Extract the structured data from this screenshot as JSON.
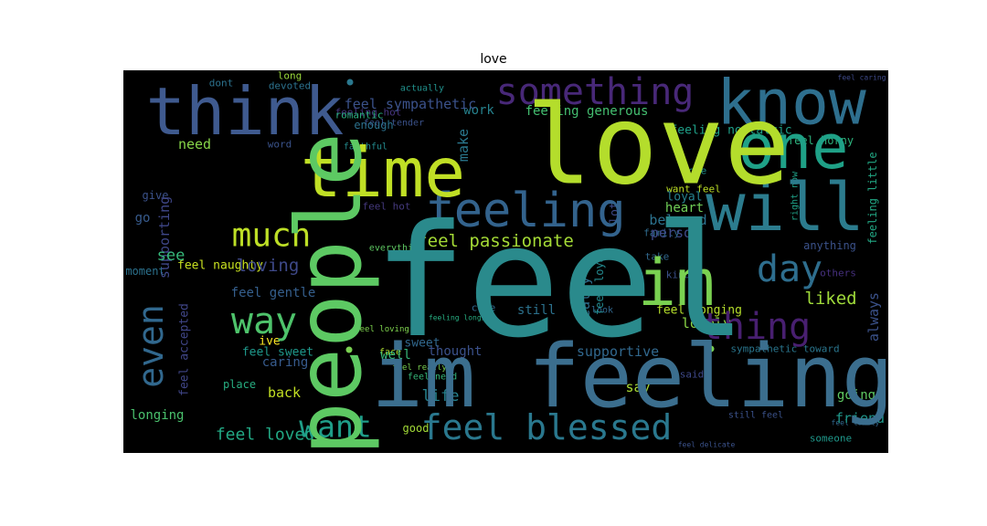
{
  "title": "love",
  "chart_data": {
    "type": "wordcloud",
    "title": "love",
    "background": "#000000",
    "colormap": "viridis",
    "words": [
      {
        "text": "feel",
        "color": "#2a8a8c",
        "weight": 1.0
      },
      {
        "text": "love",
        "color": "#b4dd2c",
        "weight": 0.95
      },
      {
        "text": "im feeling",
        "color": "#3b6e8e",
        "weight": 0.9
      },
      {
        "text": "people",
        "color": "#5dc963",
        "weight": 0.78
      },
      {
        "text": "time",
        "color": "#c0df25",
        "weight": 0.76
      },
      {
        "text": "think",
        "color": "#3f5a8f",
        "weight": 0.75
      },
      {
        "text": "know",
        "color": "#2e6f8e",
        "weight": 0.72
      },
      {
        "text": "will",
        "color": "#2c7c8e",
        "weight": 0.7
      },
      {
        "text": "one",
        "color": "#1fa187",
        "weight": 0.68
      },
      {
        "text": "im",
        "color": "#7ad151",
        "weight": 0.66
      },
      {
        "text": "feeling",
        "color": "#33638d",
        "weight": 0.55
      },
      {
        "text": "something",
        "color": "#482878",
        "weight": 0.52
      },
      {
        "text": "thing",
        "color": "#481f70",
        "weight": 0.5
      },
      {
        "text": "feel blessed",
        "color": "#2a788e",
        "weight": 0.48
      },
      {
        "text": "much",
        "color": "#bddf26",
        "weight": 0.47
      },
      {
        "text": "way",
        "color": "#4ec36b",
        "weight": 0.46
      },
      {
        "text": "even",
        "color": "#31688e",
        "weight": 0.45
      },
      {
        "text": "day",
        "color": "#2e6e8e",
        "weight": 0.44
      },
      {
        "text": "want",
        "color": "#1f9e89",
        "weight": 0.4
      },
      {
        "text": "feel passionate",
        "color": "#a5db36",
        "weight": 0.3
      },
      {
        "text": "loving",
        "color": "#3e4989",
        "weight": 0.25
      },
      {
        "text": "liked",
        "color": "#9fda3a",
        "weight": 0.25
      },
      {
        "text": "feel loved",
        "color": "#22a884",
        "weight": 0.25
      },
      {
        "text": "see",
        "color": "#35b779",
        "weight": 0.24
      },
      {
        "text": "life",
        "color": "#26828e",
        "weight": 0.23
      },
      {
        "text": "supportive",
        "color": "#31688e",
        "weight": 0.22
      },
      {
        "text": "feel sympathetic",
        "color": "#3b528b",
        "weight": 0.22
      },
      {
        "text": "feeling generous",
        "color": "#44bf70",
        "weight": 0.21
      },
      {
        "text": "beloved",
        "color": "#2c728e",
        "weight": 0.21
      },
      {
        "text": "feel gentle",
        "color": "#355f8d",
        "weight": 0.2
      },
      {
        "text": "always",
        "color": "#3b528b",
        "weight": 0.2
      },
      {
        "text": "feel accepted",
        "color": "#404688",
        "weight": 0.2
      },
      {
        "text": "supporting",
        "color": "#3f4788",
        "weight": 0.2
      },
      {
        "text": "longing",
        "color": "#4ac16d",
        "weight": 0.2
      },
      {
        "text": "lovely",
        "color": "#8bd646",
        "weight": 0.19
      },
      {
        "text": "need",
        "color": "#86d549",
        "weight": 0.19
      },
      {
        "text": "work",
        "color": "#26828e",
        "weight": 0.19
      },
      {
        "text": "make",
        "color": "#2a788e",
        "weight": 0.19
      },
      {
        "text": "feel naughty",
        "color": "#c8e020",
        "weight": 0.18
      },
      {
        "text": "heart",
        "color": "#70cf57",
        "weight": 0.18
      },
      {
        "text": "person",
        "color": "#3e4a89",
        "weight": 0.18
      },
      {
        "text": "friend",
        "color": "#1f988b",
        "weight": 0.18
      },
      {
        "text": "going",
        "color": "#5ec962",
        "weight": 0.17
      },
      {
        "text": "caring",
        "color": "#375b8d",
        "weight": 0.17
      },
      {
        "text": "say",
        "color": "#a8db34",
        "weight": 0.17
      },
      {
        "text": "thought",
        "color": "#3b518b",
        "weight": 0.17
      },
      {
        "text": "back",
        "color": "#c2df23",
        "weight": 0.17
      },
      {
        "text": "feeling nostalgic",
        "color": "#1fa088",
        "weight": 0.16
      },
      {
        "text": "feel horny",
        "color": "#2db27d",
        "weight": 0.16
      },
      {
        "text": "well",
        "color": "#35b779",
        "weight": 0.16
      },
      {
        "text": "still",
        "color": "#2c728e",
        "weight": 0.16
      },
      {
        "text": "really",
        "color": "#2e6f8e",
        "weight": 0.16
      },
      {
        "text": "sweet",
        "color": "#31688e",
        "weight": 0.15
      },
      {
        "text": "feel longing",
        "color": "#b5de2b",
        "weight": 0.15
      },
      {
        "text": "feeling little",
        "color": "#22a884",
        "weight": 0.15
      },
      {
        "text": "go",
        "color": "#375b8d",
        "weight": 0.15
      },
      {
        "text": "moment",
        "color": "#2c728e",
        "weight": 0.14
      },
      {
        "text": "give",
        "color": "#3b528b",
        "weight": 0.14
      },
      {
        "text": "feel sweet",
        "color": "#1f988b",
        "weight": 0.14
      },
      {
        "text": "lot",
        "color": "#3e4a89",
        "weight": 0.14
      },
      {
        "text": "loyal",
        "color": "#26828e",
        "weight": 0.14
      },
      {
        "text": "ive",
        "color": "#fde725",
        "weight": 0.14
      },
      {
        "text": "feel loyal",
        "color": "#23898e",
        "weight": 0.13
      },
      {
        "text": "feeling hot",
        "color": "#46337e",
        "weight": 0.12
      },
      {
        "text": "feel hot",
        "color": "#44397d",
        "weight": 0.12
      },
      {
        "text": "feel tender",
        "color": "#3b528b",
        "weight": 0.12
      },
      {
        "text": "romantic",
        "color": "#29af7f",
        "weight": 0.12
      },
      {
        "text": "devoted",
        "color": "#2c728e",
        "weight": 0.12
      },
      {
        "text": "good",
        "color": "#a2da37",
        "weight": 0.12
      },
      {
        "text": "want feel",
        "color": "#bddf26",
        "weight": 0.12
      },
      {
        "text": "place",
        "color": "#27ad81",
        "weight": 0.12
      },
      {
        "text": "anything",
        "color": "#3b528b",
        "weight": 0.12
      },
      {
        "text": "come",
        "color": "#31688e",
        "weight": 0.12
      },
      {
        "text": "faithful",
        "color": "#238a8d",
        "weight": 0.12
      },
      {
        "text": "enough",
        "color": "#2c728e",
        "weight": 0.12
      },
      {
        "text": "sympathetic toward",
        "color": "#2a768e",
        "weight": 0.12
      },
      {
        "text": "word",
        "color": "#3a538b",
        "weight": 0.11
      },
      {
        "text": "dont",
        "color": "#2c728e",
        "weight": 0.11
      },
      {
        "text": "long",
        "color": "#9bd93c",
        "weight": 0.11
      },
      {
        "text": "feel need",
        "color": "#35b779",
        "weight": 0.11
      },
      {
        "text": "feel really",
        "color": "#7ad151",
        "weight": 0.11
      },
      {
        "text": "said",
        "color": "#3e4989",
        "weight": 0.11
      },
      {
        "text": "family",
        "color": "#2f6b8e",
        "weight": 0.11
      },
      {
        "text": "nope",
        "color": "#21918c",
        "weight": 0.11
      },
      {
        "text": "others",
        "color": "#46307e",
        "weight": 0.11
      },
      {
        "text": "kind",
        "color": "#3b528b",
        "weight": 0.11
      },
      {
        "text": "take",
        "color": "#31688e",
        "weight": 0.11
      },
      {
        "text": "actually",
        "color": "#21918c",
        "weight": 0.1
      },
      {
        "text": "everything",
        "color": "#5ec962",
        "weight": 0.1
      },
      {
        "text": "face",
        "color": "#addc30",
        "weight": 0.1
      },
      {
        "text": "someone",
        "color": "#1f988b",
        "weight": 0.1
      },
      {
        "text": "still feel",
        "color": "#3b528b",
        "weight": 0.1
      },
      {
        "text": "right now",
        "color": "#1fa187",
        "weight": 0.1
      },
      {
        "text": "feel loving",
        "color": "#7fd34e",
        "weight": 0.09
      },
      {
        "text": "feel caring",
        "color": "#3e4989",
        "weight": 0.09
      },
      {
        "text": "feel lonely",
        "color": "#31688e",
        "weight": 0.09
      },
      {
        "text": "feel delicate",
        "color": "#3b528b",
        "weight": 0.09
      },
      {
        "text": "look",
        "color": "#31688e",
        "weight": 0.09
      },
      {
        "text": "feeling longing",
        "color": "#27ad81",
        "weight": 0.08
      }
    ]
  }
}
